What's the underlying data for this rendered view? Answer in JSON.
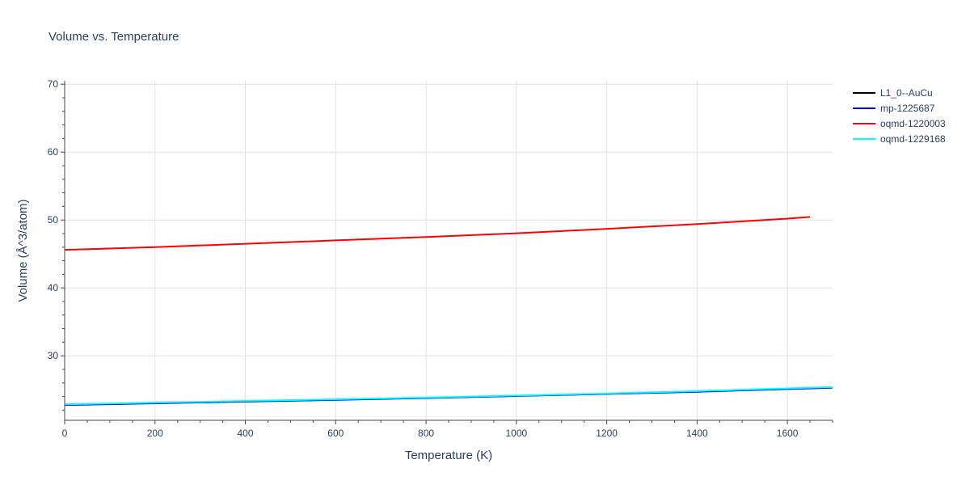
{
  "chart_data": {
    "type": "line",
    "title": "Volume vs. Temperature",
    "xlabel": "Temperature (K)",
    "ylabel": "Volume (Å^3/atom)",
    "xlim": [
      0,
      1700
    ],
    "ylim": [
      20.5,
      70.5
    ],
    "x_ticks": [
      0,
      200,
      400,
      600,
      800,
      1000,
      1200,
      1400,
      1600
    ],
    "y_ticks": [
      30,
      40,
      50,
      60,
      70
    ],
    "grid": true,
    "legend_position": "right",
    "series": [
      {
        "name": "L1_0--AuCu",
        "color": "#000000",
        "x": [
          0,
          200,
          400,
          600,
          800,
          1000,
          1200,
          1400,
          1600,
          1700
        ],
        "y": [
          22.8,
          23.05,
          23.3,
          23.55,
          23.8,
          24.1,
          24.4,
          24.75,
          25.15,
          25.35
        ]
      },
      {
        "name": "mp-1225687",
        "color": "#0000ff",
        "x": [
          0,
          200,
          400,
          600,
          800,
          1000,
          1200,
          1400,
          1600,
          1700
        ],
        "y": [
          22.75,
          23.0,
          23.25,
          23.5,
          23.78,
          24.08,
          24.38,
          24.7,
          25.1,
          25.3
        ]
      },
      {
        "name": "oqmd-1220003",
        "color": "#ff0000",
        "x": [
          0,
          200,
          400,
          600,
          800,
          1000,
          1200,
          1400,
          1600,
          1650
        ],
        "y": [
          45.6,
          46.0,
          46.5,
          47.0,
          47.5,
          48.05,
          48.7,
          49.4,
          50.2,
          50.45
        ]
      },
      {
        "name": "oqmd-1229168",
        "color": "#00ffff",
        "x": [
          0,
          200,
          400,
          600,
          800,
          1000,
          1200,
          1400,
          1600,
          1700
        ],
        "y": [
          22.85,
          23.1,
          23.35,
          23.6,
          23.85,
          24.15,
          24.45,
          24.8,
          25.2,
          25.4
        ]
      }
    ]
  }
}
